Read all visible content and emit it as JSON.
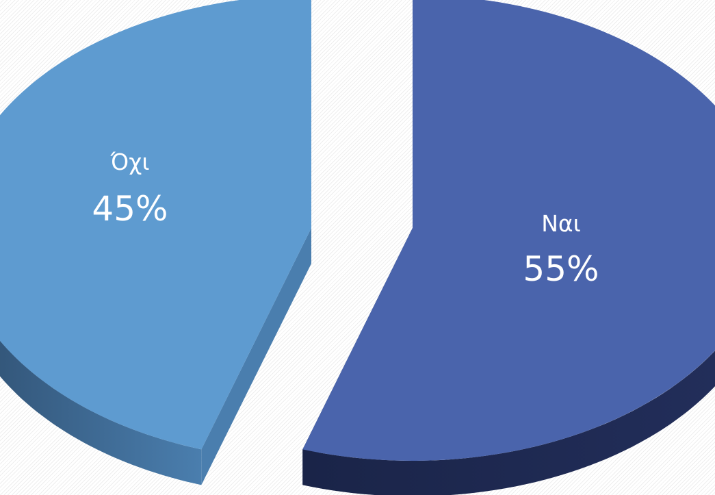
{
  "chart_data": {
    "type": "pie",
    "style": "3d-exploded",
    "categories": [
      "Όχι",
      "Ναι"
    ],
    "values": [
      45,
      55
    ],
    "value_labels": [
      "45%",
      "55%"
    ],
    "colors": {
      "Όχι": "#5E9BD0",
      "Ναι": "#4A64AC"
    },
    "legend": "none",
    "title": ""
  }
}
